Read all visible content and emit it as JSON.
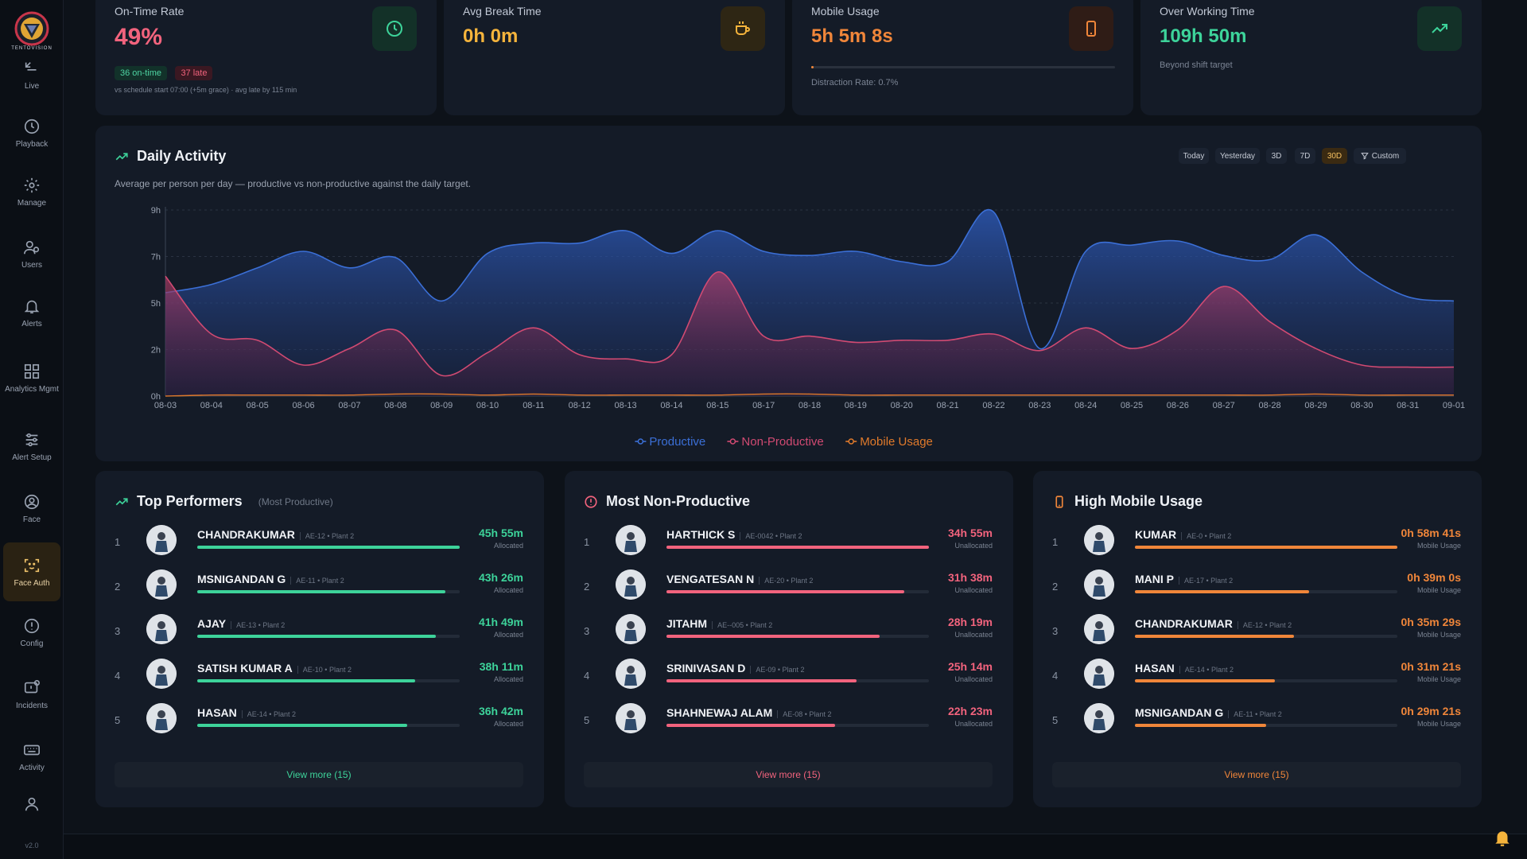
{
  "brand": {
    "logo_text": "TENTOVISION"
  },
  "sidebar": {
    "items": [
      {
        "label": "Live",
        "icon": "live-icon"
      },
      {
        "label": "Playback",
        "icon": "clock-icon"
      },
      {
        "label": "Manage",
        "icon": "gear-icon"
      },
      {
        "label": "Users",
        "icon": "users-icon"
      },
      {
        "label": "Alerts",
        "icon": "bell-icon"
      },
      {
        "label": "Analytics Mgmt",
        "icon": "grid-icon"
      },
      {
        "label": "Alert Setup",
        "icon": "sliders-icon"
      },
      {
        "label": "Face",
        "icon": "face-icon"
      },
      {
        "label": "Face Auth",
        "icon": "face-scan-icon"
      },
      {
        "label": "Config",
        "icon": "alert-circle-icon"
      },
      {
        "label": "Incidents",
        "icon": "incident-icon"
      },
      {
        "label": "Activity",
        "icon": "keyboard-icon"
      },
      {
        "label": "",
        "icon": "profile-icon"
      }
    ],
    "active": "Face Auth",
    "version": "v2.0"
  },
  "kpis": {
    "ontime": {
      "title": "On-Time Rate",
      "value": "49%",
      "ontime_pill": "36 on-time",
      "late_pill": "37 late",
      "note": "vs schedule start 07:00 (+5m grace) · avg late by 115 min"
    },
    "break": {
      "title": "Avg Break Time",
      "value": "0h 0m"
    },
    "mobile": {
      "title": "Mobile Usage",
      "value": "5h 5m 8s",
      "note": "Distraction Rate: 0.7%",
      "progress": 0.007
    },
    "overtime": {
      "title": "Over Working Time",
      "value": "109h 50m",
      "note": "Beyond shift target"
    }
  },
  "activity": {
    "title": "Daily Activity",
    "subtitle": "Average per person per day — productive vs non-productive against the daily target.",
    "ranges": [
      "Today",
      "Yesterday",
      "3D",
      "7D",
      "30D",
      "Custom"
    ],
    "active_range": "30D"
  },
  "chart_data": {
    "type": "area",
    "x": [
      "08-03",
      "08-04",
      "08-05",
      "08-06",
      "08-07",
      "08-08",
      "08-09",
      "08-10",
      "08-11",
      "08-12",
      "08-13",
      "08-14",
      "08-15",
      "08-17",
      "08-18",
      "08-19",
      "08-20",
      "08-21",
      "08-22",
      "08-23",
      "08-24",
      "08-25",
      "08-26",
      "08-27",
      "08-28",
      "08-29",
      "08-30",
      "08-31",
      "09-01"
    ],
    "y_ticks": [
      "0h",
      "2h",
      "5h",
      "7h",
      "9h"
    ],
    "ylim": [
      0,
      9
    ],
    "series": [
      {
        "name": "Productive",
        "color": "#3b6fd6",
        "values": [
          5.0,
          5.4,
          6.2,
          7.0,
          6.2,
          6.7,
          4.6,
          6.9,
          7.4,
          7.4,
          8.0,
          6.9,
          8.0,
          7.0,
          6.8,
          7.0,
          6.5,
          6.5,
          8.9,
          2.3,
          7.0,
          7.3,
          7.5,
          6.8,
          6.6,
          7.8,
          6.0,
          4.8,
          4.6
        ]
      },
      {
        "name": "Non-Productive",
        "color": "#d14a72",
        "values": [
          5.8,
          3.0,
          2.7,
          1.5,
          2.3,
          3.2,
          1.0,
          2.1,
          3.3,
          2.0,
          1.8,
          2.0,
          6.0,
          2.9,
          2.9,
          2.6,
          2.7,
          2.7,
          3.0,
          2.2,
          3.3,
          2.3,
          3.2,
          5.3,
          3.6,
          2.3,
          1.5,
          1.4,
          1.4
        ]
      },
      {
        "name": "Mobile Usage",
        "color": "#e07a2b",
        "values": [
          0.0,
          0.05,
          0.05,
          0.05,
          0.05,
          0.1,
          0.1,
          0.05,
          0.1,
          0.05,
          0.05,
          0.05,
          0.05,
          0.1,
          0.1,
          0.05,
          0.05,
          0.05,
          0.05,
          0.05,
          0.05,
          0.05,
          0.05,
          0.05,
          0.05,
          0.1,
          0.05,
          0.05,
          0.05
        ]
      }
    ],
    "grid": true,
    "legend": "bottom-center"
  },
  "top_performers": {
    "title": "Top Performers",
    "subtitle": "(Most Productive)",
    "value_label": "Allocated",
    "view_more": "View more (15)",
    "rows": [
      {
        "rank": "1",
        "name": "CHANDRAKUMAR",
        "meta": "AE-12 • Plant 2",
        "value": "45h 55m",
        "progress": 1.0
      },
      {
        "rank": "2",
        "name": "MSNIGANDAN G",
        "meta": "AE-11 • Plant 2",
        "value": "43h 26m",
        "progress": 0.945
      },
      {
        "rank": "3",
        "name": "AJAY",
        "meta": "AE-13 • Plant 2",
        "value": "41h 49m",
        "progress": 0.91
      },
      {
        "rank": "4",
        "name": "SATISH KUMAR A",
        "meta": "AE-10 • Plant 2",
        "value": "38h 11m",
        "progress": 0.83
      },
      {
        "rank": "5",
        "name": "HASAN",
        "meta": "AE-14 • Plant 2",
        "value": "36h 42m",
        "progress": 0.8
      }
    ]
  },
  "non_productive": {
    "title": "Most Non-Productive",
    "value_label": "Unallocated",
    "view_more": "View more (15)",
    "rows": [
      {
        "rank": "1",
        "name": "HARTHICK S",
        "meta": "AE-0042 • Plant 2",
        "value": "34h 55m",
        "progress": 1.0
      },
      {
        "rank": "2",
        "name": "VENGATESAN N",
        "meta": "AE-20 • Plant 2",
        "value": "31h 38m",
        "progress": 0.906
      },
      {
        "rank": "3",
        "name": "JITAHM",
        "meta": "AE--005 • Plant 2",
        "value": "28h 19m",
        "progress": 0.811
      },
      {
        "rank": "4",
        "name": "SRINIVASAN D",
        "meta": "AE-09 • Plant 2",
        "value": "25h 14m",
        "progress": 0.723
      },
      {
        "rank": "5",
        "name": "SHAHNEWAJ ALAM",
        "meta": "AE-08 • Plant 2",
        "value": "22h 23m",
        "progress": 0.641
      }
    ]
  },
  "mobile_usage": {
    "title": "High Mobile Usage",
    "value_label": "Mobile Usage",
    "view_more": "View more (15)",
    "rows": [
      {
        "rank": "1",
        "name": "KUMAR",
        "meta": "AE-0 • Plant 2",
        "value": "0h 58m 41s",
        "progress": 1.0
      },
      {
        "rank": "2",
        "name": "MANI P",
        "meta": "AE-17 • Plant 2",
        "value": "0h 39m 0s",
        "progress": 0.665
      },
      {
        "rank": "3",
        "name": "CHANDRAKUMAR",
        "meta": "AE-12 • Plant 2",
        "value": "0h 35m 29s",
        "progress": 0.605
      },
      {
        "rank": "4",
        "name": "HASAN",
        "meta": "AE-14 • Plant 2",
        "value": "0h 31m 21s",
        "progress": 0.534
      },
      {
        "rank": "5",
        "name": "MSNIGANDAN G",
        "meta": "AE-11 • Plant 2",
        "value": "0h 29m 21s",
        "progress": 0.5
      }
    ]
  }
}
